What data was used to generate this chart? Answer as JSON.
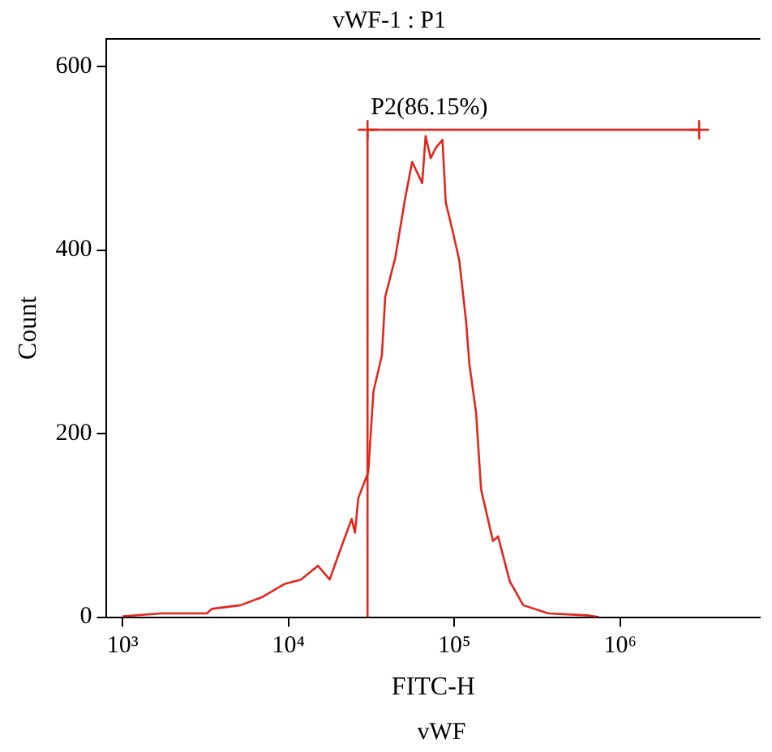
{
  "chart_data": {
    "type": "line",
    "title": "vWF-1 : P1",
    "xlabel": "FITC-H",
    "ylabel": "Count",
    "annotations": [
      "vWF",
      {
        "text": "P2(86.15%)",
        "x": 30000,
        "y": 531
      }
    ],
    "x": [
      1000,
      1712,
      3220,
      3450,
      5140,
      6970,
      9440,
      11900,
      15060,
      17740,
      19950,
      24060,
      25200,
      26400,
      30300,
      32580,
      36600,
      38370,
      44150,
      48450,
      50800,
      55760,
      64100,
      67200,
      72100,
      77300,
      84900,
      88900,
      97700,
      107200,
      117800,
      123400,
      135400,
      145200,
      171300,
      183700,
      216300,
      260800,
      370400,
      634600,
      746000
    ],
    "series": [
      {
        "color": "#e3261c",
        "values": [
          1,
          4,
          4,
          9,
          13,
          22,
          36,
          41,
          56,
          41,
          67,
          107,
          92,
          130,
          158,
          246,
          285,
          349,
          392,
          436,
          458,
          496,
          473,
          524,
          500,
          511,
          520,
          452,
          421,
          389,
          323,
          276,
          223,
          139,
          83,
          88,
          39,
          13,
          4,
          2,
          0
        ]
      },
      {
        "color": "#e3261c",
        "type": "line",
        "marker": "cross",
        "x": [
          30000,
          3000000
        ],
        "values": [
          531,
          531
        ]
      }
    ],
    "xlim": [
      800,
      7000000
    ],
    "ylim": [
      0,
      630
    ],
    "xticks": [
      {
        "value": 1000,
        "label": "10³"
      },
      {
        "value": 10000,
        "label": "10⁴"
      },
      {
        "value": 100000,
        "label": "10⁵"
      },
      {
        "value": 1000000,
        "label": "10⁶"
      }
    ],
    "yticks": [
      0,
      200,
      400,
      600
    ],
    "log": "x",
    "grid": false,
    "legend": false,
    "marker": "none",
    "line_style": "solid",
    "ref_lines": [
      {
        "axis": "x",
        "value": 30000,
        "color": "#e3261c"
      }
    ]
  }
}
